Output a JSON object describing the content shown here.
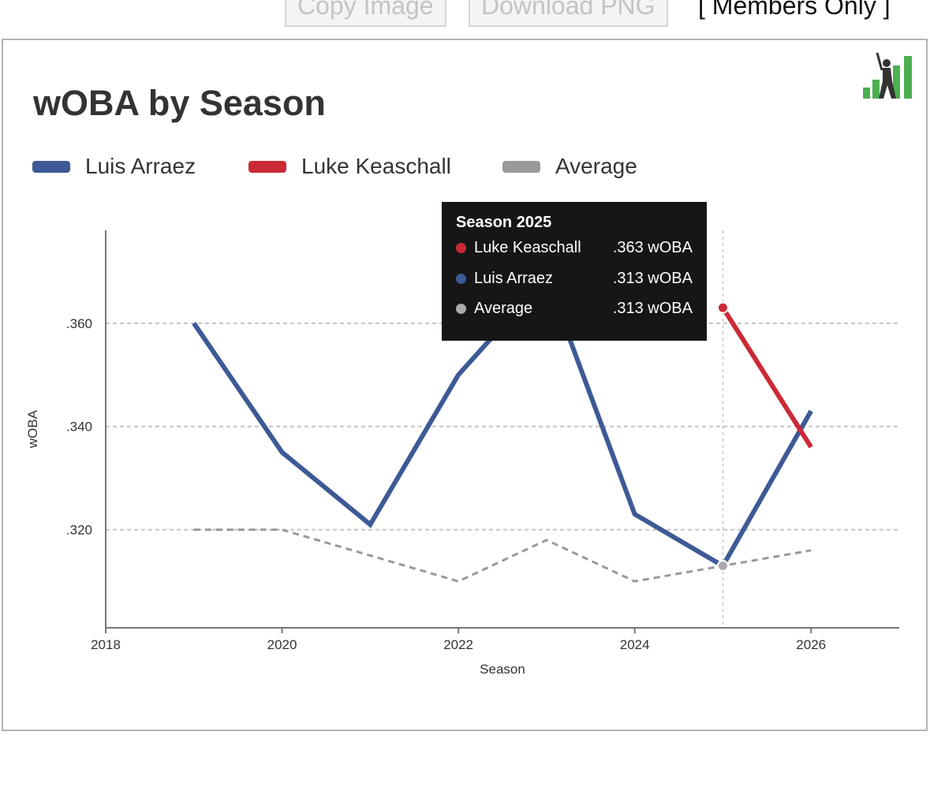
{
  "toolbar": {
    "copy_label": "Copy Image",
    "download_label": "Download PNG",
    "members_label": "[  Members Only  ]"
  },
  "chart": {
    "title": "wOBA by Season",
    "logo_icon": "batter-bar-chart-logo"
  },
  "tooltip": {
    "title": "Season 2025",
    "rows": [
      {
        "name": "Luke Keaschall",
        "value": ".363 wOBA",
        "color": "#cc2936"
      },
      {
        "name": "Luis Arraez",
        "value": ".313 wOBA",
        "color": "#3d5a96"
      },
      {
        "name": "Average",
        "value": ".313 wOBA",
        "color": "#aaaaaa"
      }
    ]
  },
  "chart_data": {
    "type": "line",
    "title": "wOBA by Season",
    "xlabel": "Season",
    "ylabel": "wOBA",
    "xlim": [
      2018,
      2027
    ],
    "ylim": [
      0.301,
      0.378
    ],
    "x_ticks": [
      2018,
      2020,
      2022,
      2024,
      2026
    ],
    "y_ticks": [
      0.32,
      0.34,
      0.36
    ],
    "y_tick_labels": [
      ".320",
      ".340",
      ".360"
    ],
    "grid": "horizontal dashed",
    "legend_position": "top-left",
    "highlight_x": 2025,
    "series": [
      {
        "name": "Luis Arraez",
        "color": "#3d5a96",
        "style": "solid",
        "x": [
          2019,
          2020,
          2021,
          2022,
          2023,
          2024,
          2025,
          2026
        ],
        "y": [
          0.36,
          0.335,
          0.321,
          0.35,
          0.369,
          0.323,
          0.313,
          0.343
        ]
      },
      {
        "name": "Luke Keaschall",
        "color": "#cc2936",
        "style": "solid",
        "x": [
          2025,
          2026
        ],
        "y": [
          0.363,
          0.336
        ]
      },
      {
        "name": "Average",
        "color": "#999999",
        "style": "dashed",
        "x": [
          2019,
          2020,
          2021,
          2022,
          2023,
          2024,
          2025,
          2026
        ],
        "y": [
          0.32,
          0.32,
          0.315,
          0.31,
          0.318,
          0.31,
          0.313,
          0.316
        ]
      }
    ]
  }
}
